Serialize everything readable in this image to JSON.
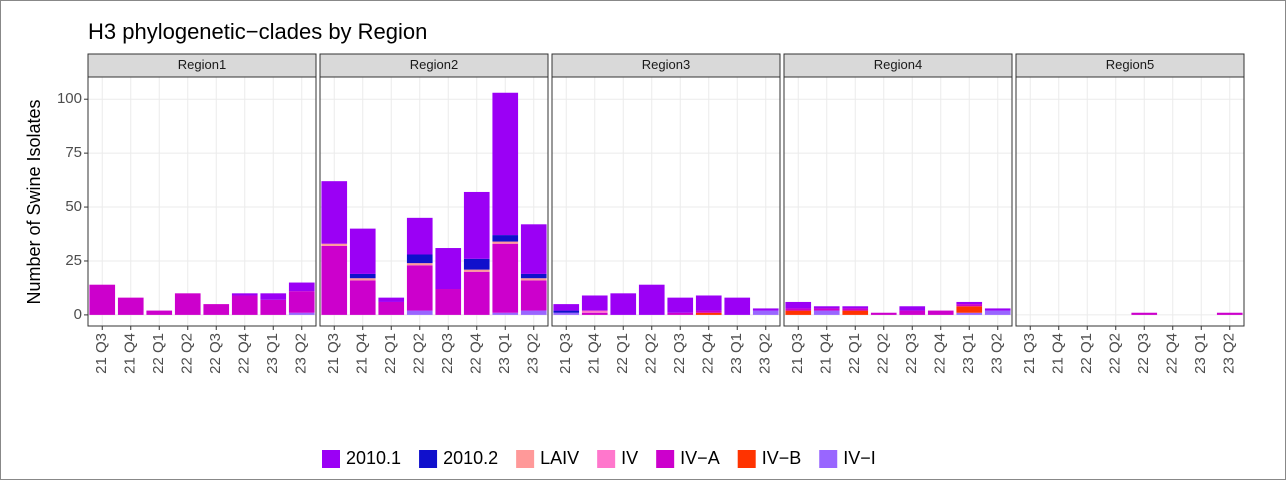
{
  "chart_data": {
    "type": "bar",
    "stacked": true,
    "title": "H3 phylogenetic−clades by Region",
    "y_label": "Number of Swine Isolates",
    "categories": [
      "21 Q3",
      "21 Q4",
      "22 Q1",
      "22 Q2",
      "22 Q3",
      "22 Q4",
      "23 Q1",
      "23 Q2"
    ],
    "ylim": [
      -5.15,
      110.3
    ],
    "yticks": [
      0,
      25,
      50,
      75,
      100
    ],
    "grid": true,
    "legend": "bottom",
    "series": [
      {
        "name": "2010.1",
        "color": "#9b00f5"
      },
      {
        "name": "2010.2",
        "color": "#1010cc"
      },
      {
        "name": "LAIV",
        "color": "#ff9999"
      },
      {
        "name": "IV",
        "color": "#ff77cc"
      },
      {
        "name": "IV−A",
        "color": "#cc00cc"
      },
      {
        "name": "IV−B",
        "color": "#ff3300"
      },
      {
        "name": "IV−I",
        "color": "#9966ff"
      }
    ],
    "panels": [
      {
        "title": "Region1",
        "values": [
          [
            0,
            0,
            0,
            0,
            0,
            1,
            3,
            4
          ],
          [
            0,
            0,
            0,
            0,
            0,
            0,
            0,
            0
          ],
          [
            0,
            0,
            0,
            0,
            0,
            0,
            0,
            0
          ],
          [
            0,
            0,
            0,
            0,
            0,
            0,
            0,
            0
          ],
          [
            14,
            8,
            2,
            10,
            5,
            9,
            7,
            10
          ],
          [
            0,
            0,
            0,
            0,
            0,
            0,
            0,
            0
          ],
          [
            0,
            0,
            0,
            0,
            0,
            0,
            0,
            1
          ]
        ]
      },
      {
        "title": "Region2",
        "values": [
          [
            29,
            21,
            2,
            17,
            19,
            31,
            66,
            23
          ],
          [
            0,
            2,
            0,
            4,
            0,
            5,
            3,
            2
          ],
          [
            1,
            1,
            0,
            1,
            0,
            1,
            1,
            1
          ],
          [
            0,
            0,
            0,
            0,
            0,
            0,
            0,
            0
          ],
          [
            32,
            16,
            6,
            21,
            12,
            20,
            32,
            14
          ],
          [
            0,
            0,
            0,
            0,
            0,
            0,
            0,
            0
          ],
          [
            0,
            0,
            0,
            2,
            0,
            0,
            1,
            2
          ]
        ]
      },
      {
        "title": "Region3",
        "values": [
          [
            3,
            7,
            10,
            14,
            7,
            7,
            8,
            1
          ],
          [
            1,
            0,
            0,
            0,
            0,
            0,
            0,
            0
          ],
          [
            0,
            0,
            0,
            0,
            0,
            0,
            0,
            0
          ],
          [
            0,
            1,
            0,
            0,
            0,
            0,
            0,
            0
          ],
          [
            0,
            1,
            0,
            0,
            1,
            1,
            0,
            0
          ],
          [
            0,
            0,
            0,
            0,
            0,
            1,
            0,
            0
          ],
          [
            1,
            0,
            0,
            0,
            0,
            0,
            0,
            2
          ]
        ]
      },
      {
        "title": "Region4",
        "values": [
          [
            3,
            1,
            1,
            0,
            2,
            0,
            1,
            1
          ],
          [
            0,
            0,
            0,
            0,
            0,
            0,
            0,
            0
          ],
          [
            0,
            0,
            0,
            0,
            0,
            0,
            0,
            0
          ],
          [
            0,
            0,
            0,
            0,
            0,
            0,
            0,
            0
          ],
          [
            1,
            1,
            1,
            1,
            2,
            2,
            1,
            0
          ],
          [
            2,
            0,
            2,
            0,
            0,
            0,
            3,
            0
          ],
          [
            0,
            2,
            0,
            0,
            0,
            0,
            1,
            2
          ]
        ]
      },
      {
        "title": "Region5",
        "values": [
          [
            0,
            0,
            0,
            0,
            0,
            0,
            0,
            0
          ],
          [
            0,
            0,
            0,
            0,
            0,
            0,
            0,
            0
          ],
          [
            0,
            0,
            0,
            0,
            0,
            0,
            0,
            0
          ],
          [
            0,
            0,
            0,
            0,
            0,
            0,
            0,
            0
          ],
          [
            0,
            0,
            0,
            0,
            1,
            0,
            0,
            1
          ],
          [
            0,
            0,
            0,
            0,
            0,
            0,
            0,
            0
          ],
          [
            0,
            0,
            0,
            0,
            0,
            0,
            0,
            0
          ]
        ]
      }
    ]
  }
}
